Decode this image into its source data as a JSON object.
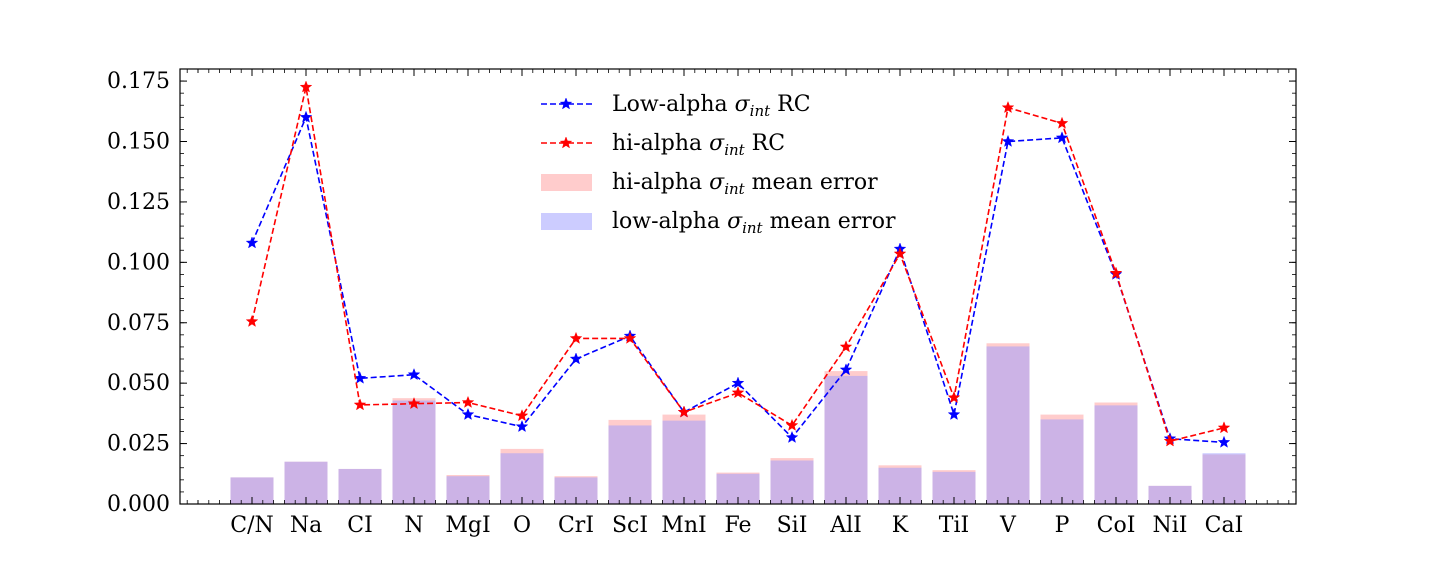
{
  "chart_data": {
    "type": "bar",
    "categories": [
      "C/N",
      "Na",
      "CI",
      "N",
      "MgI",
      "O",
      "CrI",
      "ScI",
      "MnI",
      "Fe",
      "SiI",
      "AlI",
      "K",
      "TiI",
      "V",
      "P",
      "CoI",
      "NiI",
      "CaI"
    ],
    "ylim": [
      0,
      0.18
    ],
    "yticks": [
      "0.000",
      "0.025",
      "0.050",
      "0.075",
      "0.100",
      "0.125",
      "0.150",
      "0.175"
    ],
    "ytick_values": [
      0,
      0.025,
      0.05,
      0.075,
      0.1,
      0.125,
      0.15,
      0.175
    ],
    "series": [
      {
        "name": "Low-alpha σint RC",
        "legend_main": "Low-alpha ",
        "legend_sub": "int",
        "legend_tail": " RC",
        "kind": "line",
        "color": "#0000ff",
        "values": [
          0.108,
          0.16,
          0.052,
          0.0535,
          0.037,
          0.032,
          0.06,
          0.0695,
          0.038,
          0.05,
          0.0275,
          0.0555,
          0.1055,
          0.037,
          0.15,
          0.1515,
          0.095,
          0.027,
          0.0255
        ]
      },
      {
        "name": "hi-alpha σint RC",
        "legend_main": "hi-alpha ",
        "legend_sub": "int",
        "legend_tail": " RC",
        "kind": "line",
        "color": "#ff0000",
        "values": [
          0.0755,
          0.1725,
          0.041,
          0.0415,
          0.042,
          0.0365,
          0.0685,
          0.0685,
          0.038,
          0.046,
          0.0325,
          0.065,
          0.1035,
          0.044,
          0.164,
          0.1575,
          0.0955,
          0.026,
          0.0315
        ]
      },
      {
        "name": "hi-alpha σint mean error",
        "legend_main": "hi-alpha ",
        "legend_sub": "int",
        "legend_tail": " mean error",
        "kind": "bar",
        "color": "#ff9999",
        "values": [
          0.011,
          0.0175,
          0.0145,
          0.0438,
          0.012,
          0.0228,
          0.0115,
          0.0348,
          0.037,
          0.013,
          0.019,
          0.055,
          0.016,
          0.014,
          0.0665,
          0.037,
          0.042,
          0.0075,
          0.0205
        ]
      },
      {
        "name": "low-alpha σint mean error",
        "legend_main": "low-alpha ",
        "legend_sub": "int",
        "legend_tail": " mean error",
        "kind": "bar",
        "color": "#9999ff",
        "values": [
          0.011,
          0.0175,
          0.0145,
          0.0428,
          0.0115,
          0.021,
          0.011,
          0.0325,
          0.0345,
          0.0125,
          0.018,
          0.053,
          0.015,
          0.0133,
          0.0652,
          0.035,
          0.0408,
          0.0075,
          0.021
        ]
      }
    ],
    "legend_position": "upper-center",
    "grid": false
  }
}
